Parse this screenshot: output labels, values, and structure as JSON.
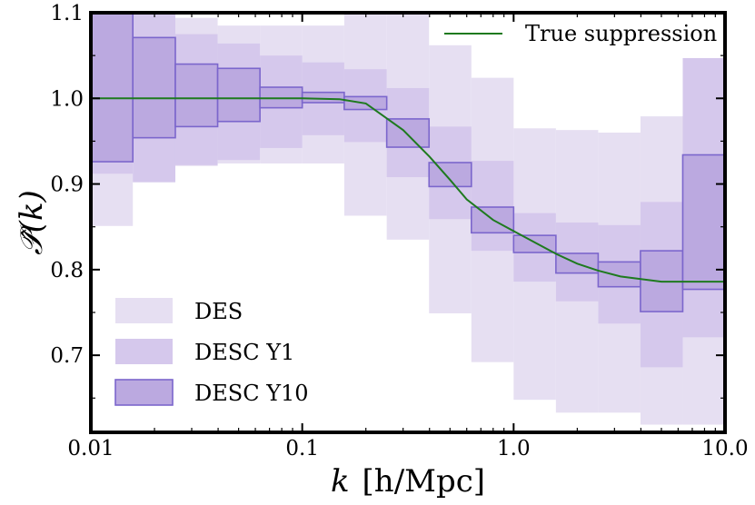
{
  "chart_data": {
    "type": "area",
    "title": "",
    "xlabel_prefix": "k",
    "xlabel_suffix": "[h/Mpc]",
    "ylabel": "𝒫̂(k)",
    "xscale": "log",
    "xlim": [
      0.01,
      10.0
    ],
    "ylim": [
      0.61,
      1.1
    ],
    "xticks": [
      0.01,
      0.1,
      1.0,
      10.0
    ],
    "xtick_labels": [
      "0.01",
      "0.1",
      "1.0",
      "10.0"
    ],
    "yticks": [
      0.7,
      0.8,
      0.9,
      1.0,
      1.1
    ],
    "ytick_labels": [
      "0.7",
      "0.8",
      "0.9",
      "1.0",
      "1.1"
    ],
    "k_bins": [
      0.01,
      0.0158,
      0.0251,
      0.0398,
      0.0631,
      0.1,
      0.158,
      0.251,
      0.398,
      0.631,
      1.0,
      1.585,
      2.512,
      3.981,
      6.31,
      10.0
    ],
    "series": [
      {
        "name": "DES",
        "color": "#e6dff2",
        "lower": [
          0.851,
          0.903,
          0.921,
          0.924,
          0.924,
          0.924,
          0.863,
          0.835,
          0.749,
          0.692,
          0.648,
          0.633,
          0.633,
          0.619,
          0.619
        ],
        "upper": [
          1.1,
          1.1,
          1.094,
          1.085,
          1.085,
          1.085,
          1.1,
          1.1,
          1.062,
          1.024,
          0.965,
          0.963,
          0.96,
          0.979,
          1.047
        ]
      },
      {
        "name": "DESC Y1",
        "color": "#d5c8ec",
        "lower": [
          0.912,
          0.902,
          0.922,
          0.928,
          0.942,
          0.957,
          0.949,
          0.908,
          0.859,
          0.822,
          0.786,
          0.763,
          0.737,
          0.686,
          0.721
        ],
        "upper": [
          1.1,
          1.1,
          1.075,
          1.064,
          1.05,
          1.042,
          1.034,
          1.012,
          0.967,
          0.927,
          0.866,
          0.855,
          0.852,
          0.879,
          1.047
        ]
      },
      {
        "name": "DESC Y10",
        "color": "#bba9e0",
        "edge": "#7b66cc",
        "lower": [
          0.926,
          0.954,
          0.967,
          0.973,
          0.989,
          0.995,
          0.987,
          0.943,
          0.897,
          0.843,
          0.82,
          0.796,
          0.78,
          0.751,
          0.777
        ],
        "upper": [
          1.1,
          1.071,
          1.04,
          1.035,
          1.013,
          1.007,
          1.002,
          0.976,
          0.925,
          0.873,
          0.84,
          0.819,
          0.809,
          0.822,
          0.934
        ]
      }
    ],
    "line": {
      "name": "True suppression",
      "color": "#1e7a1e",
      "x": [
        0.01,
        0.02,
        0.05,
        0.1,
        0.15,
        0.2,
        0.3,
        0.4,
        0.5,
        0.6,
        0.8,
        1.0,
        1.3,
        1.6,
        2.0,
        2.5,
        3.2,
        4.0,
        5.0,
        6.3,
        10.0
      ],
      "y": [
        1.0,
        1.0,
        1.0,
        1.0,
        0.999,
        0.994,
        0.963,
        0.932,
        0.905,
        0.882,
        0.858,
        0.845,
        0.83,
        0.818,
        0.807,
        0.799,
        0.792,
        0.789,
        0.786,
        0.786,
        0.786
      ]
    },
    "legend_lower_left": [
      "DES",
      "DESC Y1",
      "DESC Y10"
    ],
    "legend_upper_right": [
      "True suppression"
    ]
  }
}
